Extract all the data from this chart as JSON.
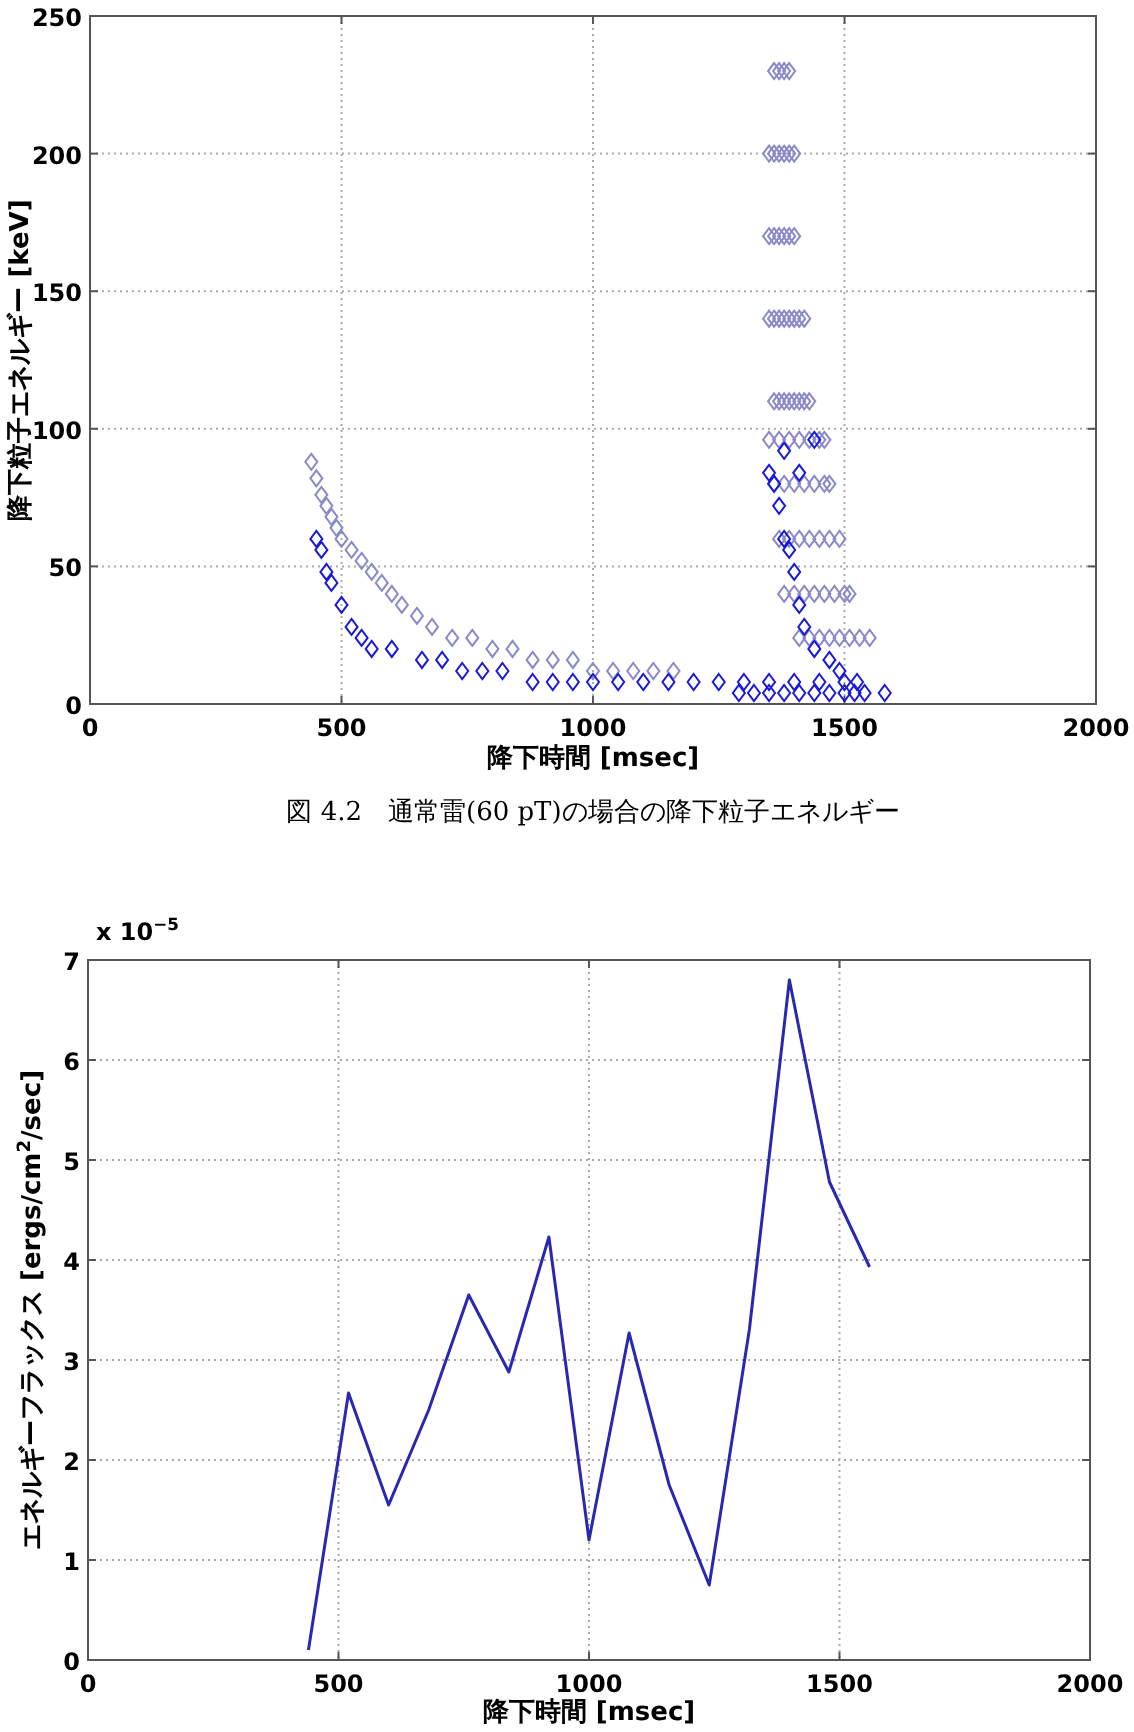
{
  "chart_data": [
    {
      "type": "scatter",
      "xlabel": "降下時間 [msec]",
      "ylabel": "降下粒子エネルギー [keV]",
      "annotations": [
        "図 4.2　通常雷(60 pT)の場合の降下粒子エネルギー"
      ],
      "xlim": [
        0,
        2000
      ],
      "ylim": [
        0,
        250
      ],
      "xticks": [
        0,
        500,
        1000,
        1500,
        2000
      ],
      "yticks": [
        0,
        50,
        100,
        150,
        200,
        250
      ],
      "grid": true,
      "marker": "diamond",
      "series": [
        {
          "color": "#8a8ac8",
          "x": [
            440,
            450,
            460,
            470,
            480,
            490,
            500,
            520,
            540,
            560,
            580,
            600,
            620,
            650,
            680,
            720,
            760,
            800,
            840,
            880,
            920,
            960,
            1000,
            1040,
            1080,
            1120,
            1160,
            1360,
            1370,
            1380,
            1390,
            1350,
            1360,
            1370,
            1380,
            1390,
            1400,
            1350,
            1360,
            1370,
            1380,
            1390,
            1400,
            1350,
            1360,
            1370,
            1380,
            1390,
            1400,
            1410,
            1420,
            1360,
            1370,
            1380,
            1390,
            1400,
            1410,
            1420,
            1430,
            1350,
            1370,
            1390,
            1410,
            1430,
            1450,
            1460,
            1360,
            1380,
            1400,
            1420,
            1440,
            1460,
            1470,
            1370,
            1390,
            1410,
            1430,
            1450,
            1470,
            1490,
            1380,
            1400,
            1420,
            1440,
            1460,
            1480,
            1500,
            1510,
            1410,
            1430,
            1450,
            1470,
            1490,
            1510,
            1530,
            1550
          ],
          "values": [
            88,
            82,
            76,
            72,
            68,
            64,
            60,
            56,
            52,
            48,
            44,
            40,
            36,
            32,
            28,
            24,
            24,
            20,
            20,
            16,
            16,
            16,
            12,
            12,
            12,
            12,
            12,
            230,
            230,
            230,
            230,
            200,
            200,
            200,
            200,
            200,
            200,
            170,
            170,
            170,
            170,
            170,
            170,
            140,
            140,
            140,
            140,
            140,
            140,
            140,
            140,
            110,
            110,
            110,
            110,
            110,
            110,
            110,
            110,
            96,
            96,
            96,
            96,
            96,
            96,
            96,
            80,
            80,
            80,
            80,
            80,
            80,
            80,
            60,
            60,
            60,
            60,
            60,
            60,
            60,
            40,
            40,
            40,
            40,
            40,
            40,
            40,
            40,
            24,
            24,
            24,
            24,
            24,
            24,
            24,
            24
          ]
        },
        {
          "color": "#1a1ad8",
          "x": [
            450,
            460,
            470,
            480,
            500,
            520,
            540,
            560,
            600,
            660,
            700,
            740,
            780,
            820,
            880,
            920,
            960,
            1000,
            1050,
            1100,
            1150,
            1200,
            1250,
            1300,
            1350,
            1400,
            1450,
            1500,
            1290,
            1320,
            1350,
            1380,
            1410,
            1440,
            1470,
            1500,
            1520,
            1540,
            1580,
            1350,
            1360,
            1380,
            1370,
            1380,
            1390,
            1400,
            1410,
            1420,
            1440,
            1470,
            1490,
            1525,
            1440,
            1410
          ],
          "values": [
            60,
            56,
            48,
            44,
            36,
            28,
            24,
            20,
            20,
            16,
            16,
            12,
            12,
            12,
            8,
            8,
            8,
            8,
            8,
            8,
            8,
            8,
            8,
            8,
            8,
            8,
            8,
            8,
            4,
            4,
            4,
            4,
            4,
            4,
            4,
            4,
            4,
            4,
            4,
            84,
            80,
            92,
            72,
            60,
            56,
            48,
            36,
            28,
            20,
            16,
            12,
            8,
            96,
            84
          ]
        }
      ]
    },
    {
      "type": "line",
      "xlabel": "降下時間 [msec]",
      "ylabel": "エネルギーフラックス [ergs/cm$^{2}$/sec]",
      "annotations": [
        "x 10$^{−5}$"
      ],
      "xlim": [
        0,
        2000
      ],
      "ylim": [
        0,
        7
      ],
      "xticks": [
        0,
        500,
        1000,
        1500,
        2000
      ],
      "yticks": [
        0,
        1,
        2,
        3,
        4,
        5,
        6,
        7
      ],
      "grid": true,
      "series": [
        {
          "color": "#2828b0",
          "x": [
            440,
            520,
            600,
            680,
            760,
            840,
            920,
            1000,
            1080,
            1160,
            1240,
            1320,
            1400,
            1480,
            1560
          ],
          "values": [
            0.1,
            2.67,
            1.55,
            2.5,
            3.65,
            2.88,
            4.23,
            1.2,
            3.27,
            1.75,
            0.75,
            3.3,
            6.8,
            4.78,
            3.93
          ]
        }
      ]
    }
  ]
}
